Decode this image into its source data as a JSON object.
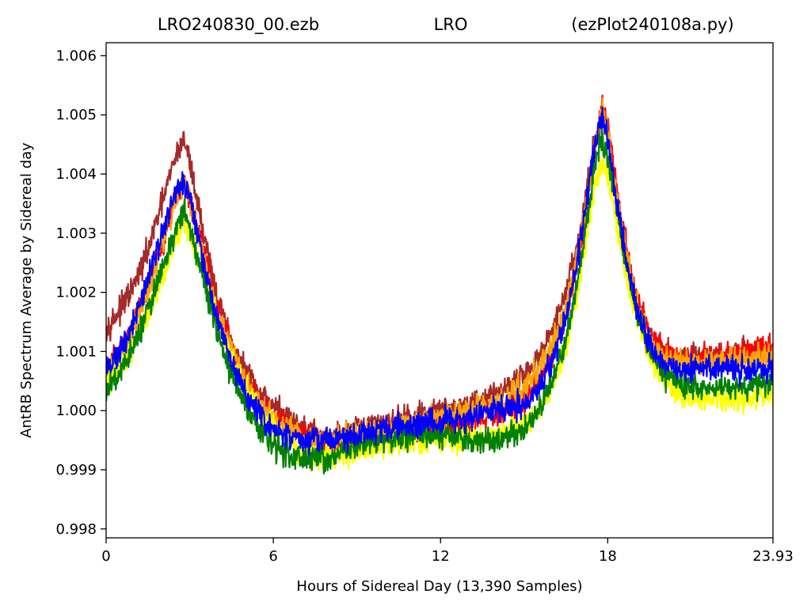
{
  "chart_data": {
    "type": "line",
    "title_parts": [
      "LRO240830_00.ezb",
      "LRO",
      "(ezPlot240108a.py)"
    ],
    "xlabel": "Hours of Sidereal Day  (13,390 Samples)",
    "ylabel": "AntRB Spectrum Average by Sidereal day",
    "xlim": [
      0,
      23.93
    ],
    "ylim": [
      0.99785,
      1.00622
    ],
    "x_ticks": [
      0,
      6,
      12,
      18,
      23.93
    ],
    "x_tick_labels": [
      "0",
      "6",
      "12",
      "18",
      "23.93"
    ],
    "y_ticks": [
      0.998,
      0.999,
      1.0,
      1.001,
      1.002,
      1.003,
      1.004,
      1.005,
      1.006
    ],
    "y_tick_labels": [
      "0.998",
      "0.999",
      "1.000",
      "1.001",
      "1.002",
      "1.003",
      "1.004",
      "1.005",
      "1.006"
    ],
    "grid": false,
    "x": [
      0,
      0.5,
      1,
      1.5,
      2,
      2.5,
      2.8,
      3,
      3.5,
      4,
      4.5,
      5,
      5.5,
      6,
      6.5,
      7,
      7.5,
      8,
      9,
      10,
      11,
      12,
      13,
      14,
      15,
      15.5,
      16,
      16.5,
      17,
      17.5,
      17.8,
      18,
      18.5,
      19,
      19.5,
      20,
      20.5,
      21,
      22,
      23,
      23.93
    ],
    "series": [
      {
        "color": "#a52a2a",
        "values": [
          1.0014,
          1.0017,
          1.0021,
          1.0027,
          1.0035,
          1.0043,
          1.0046,
          1.0042,
          1.003,
          1.0019,
          1.0011,
          1.0007,
          1.0003,
          1.0001,
          0.9999,
          0.9997,
          0.9996,
          0.9995,
          0.9997,
          0.9998,
          0.9999,
          1.0,
          1.0001,
          1.0003,
          1.0006,
          1.0009,
          1.0013,
          1.002,
          1.003,
          1.0045,
          1.005,
          1.0046,
          1.003,
          1.0019,
          1.0013,
          1.001,
          1.0009,
          1.0009,
          1.0009,
          1.001,
          1.001
        ]
      },
      {
        "color": "#ff0000",
        "values": [
          1.0007,
          1.001,
          1.0015,
          1.0021,
          1.0028,
          1.0036,
          1.0039,
          1.0036,
          1.0027,
          1.0017,
          1.001,
          1.0005,
          1.0001,
          0.9999,
          0.9997,
          0.9996,
          0.9995,
          0.9994,
          0.9995,
          0.9996,
          0.9997,
          0.9997,
          0.9998,
          0.9999,
          1.0002,
          1.0005,
          1.0009,
          1.0016,
          1.0027,
          1.0043,
          1.0052,
          1.0048,
          1.0032,
          1.002,
          1.0013,
          1.001,
          1.0009,
          1.0009,
          1.0009,
          1.001,
          1.0011
        ]
      },
      {
        "color": "#ffa500",
        "values": [
          1.0006,
          1.0009,
          1.0014,
          1.002,
          1.0028,
          1.0036,
          1.0039,
          1.0036,
          1.0026,
          1.0016,
          1.001,
          1.0005,
          1.0001,
          0.9999,
          0.9997,
          0.9996,
          0.9995,
          0.9995,
          0.9996,
          0.9997,
          0.9998,
          0.9999,
          1.0,
          1.0001,
          1.0004,
          1.0007,
          1.0011,
          1.0018,
          1.0028,
          1.0043,
          1.0051,
          1.0047,
          1.0031,
          1.0019,
          1.0012,
          1.0009,
          1.0008,
          1.0008,
          1.0008,
          1.0009,
          1.0009
        ]
      },
      {
        "color": "#ffff00",
        "values": [
          1.0004,
          1.0007,
          1.0011,
          1.0016,
          1.0022,
          1.0029,
          1.0032,
          1.003,
          1.0023,
          1.0015,
          1.0009,
          1.0004,
          1.0,
          0.9997,
          0.9995,
          0.9993,
          0.9992,
          0.9992,
          0.9993,
          0.9994,
          0.9995,
          0.9995,
          0.9995,
          0.9996,
          0.9998,
          1.0,
          1.0004,
          1.0011,
          1.0022,
          1.0037,
          1.0042,
          1.004,
          1.0027,
          1.0016,
          1.0009,
          1.0005,
          1.0003,
          1.0002,
          1.0002,
          1.0002,
          1.0003
        ]
      },
      {
        "color": "#008000",
        "values": [
          1.0003,
          1.0006,
          1.0011,
          1.0017,
          1.0024,
          1.0031,
          1.0034,
          1.0031,
          1.0022,
          1.0013,
          1.0006,
          1.0001,
          0.9997,
          0.9994,
          0.9993,
          0.9992,
          0.9992,
          0.9992,
          0.9994,
          0.9995,
          0.9996,
          0.9996,
          0.9995,
          0.9995,
          0.9997,
          1.0,
          1.0005,
          1.0012,
          1.0024,
          1.004,
          1.0046,
          1.0043,
          1.0029,
          1.0017,
          1.001,
          1.0006,
          1.0005,
          1.0004,
          1.0004,
          1.0004,
          1.0005
        ]
      },
      {
        "color": "#0000ff",
        "values": [
          1.0007,
          1.001,
          1.0015,
          1.0022,
          1.003,
          1.0037,
          1.0039,
          1.0036,
          1.0025,
          1.0015,
          1.0008,
          1.0003,
          0.9999,
          0.9997,
          0.9996,
          0.9995,
          0.9995,
          0.9995,
          0.9996,
          0.9997,
          0.9998,
          0.9998,
          0.9999,
          1.0,
          1.0001,
          1.0004,
          1.0008,
          1.0016,
          1.0028,
          1.0044,
          1.005,
          1.0046,
          1.003,
          1.0018,
          1.0011,
          1.0008,
          1.0007,
          1.0007,
          1.0007,
          1.0007,
          1.0007
        ]
      }
    ]
  }
}
